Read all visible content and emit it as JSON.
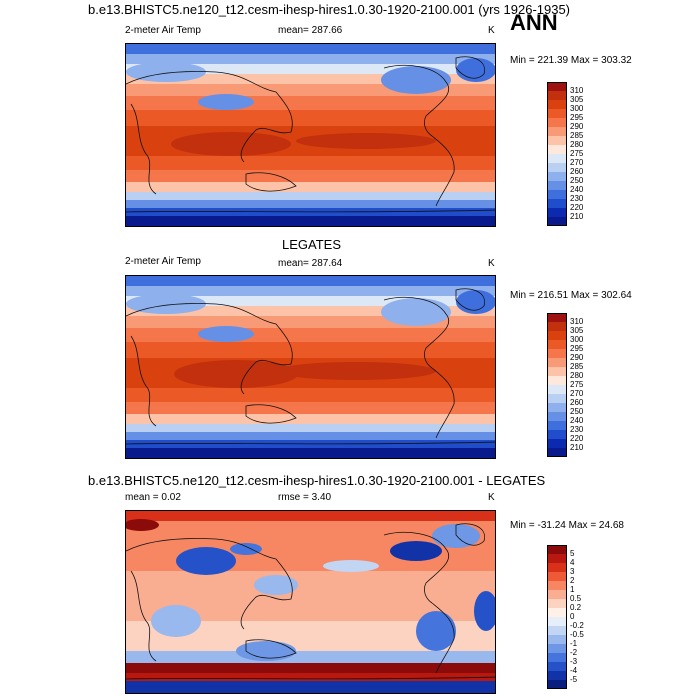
{
  "title": "b.e13.BHISTC5.ne120_t12.cesm-ihesp-hires1.0.30-1920-2100.001 (yrs 1926-1935)",
  "season": "ANN",
  "panels": [
    {
      "id": "model",
      "heading": "",
      "left_label": "2-meter Air Temp",
      "center_label": "mean= 287.66",
      "right_label": "K",
      "minmax": "Min = 221.39 Max = 303.32",
      "colorbar": {
        "levels": [
          "310",
          "305",
          "300",
          "295",
          "290",
          "285",
          "280",
          "275",
          "270",
          "260",
          "250",
          "240",
          "230",
          "220",
          "210"
        ],
        "colors": [
          "#9e1111",
          "#c2300e",
          "#d9420e",
          "#eb5a26",
          "#f5764a",
          "#f99a76",
          "#fcc3a8",
          "#fee8dc",
          "#dde8f7",
          "#b9d0f2",
          "#8eb0ed",
          "#6690e6",
          "#3f6fdd",
          "#1f4dcc",
          "#0c2ab0",
          "#081a8c"
        ]
      }
    },
    {
      "id": "obs",
      "heading": "LEGATES",
      "left_label": "2-meter Air Temp",
      "center_label": "mean= 287.64",
      "right_label": "K",
      "minmax": "Min = 216.51 Max = 302.64",
      "colorbar": {
        "levels": [
          "310",
          "305",
          "300",
          "295",
          "290",
          "285",
          "280",
          "275",
          "270",
          "260",
          "250",
          "240",
          "230",
          "220",
          "210"
        ],
        "colors": [
          "#9e1111",
          "#c2300e",
          "#d9420e",
          "#eb5a26",
          "#f5764a",
          "#f99a76",
          "#fcc3a8",
          "#fee8dc",
          "#dde8f7",
          "#b9d0f2",
          "#8eb0ed",
          "#6690e6",
          "#3f6fdd",
          "#1f4dcc",
          "#0c2ab0",
          "#081a8c"
        ]
      }
    },
    {
      "id": "diff",
      "heading": "b.e13.BHISTC5.ne120_t12.cesm-ihesp-hires1.0.30-1920-2100.001 - LEGATES",
      "left_label": "mean =   0.02",
      "center_label": "rmse =    3.40",
      "right_label": "K",
      "minmax": "Min = -31.24 Max =  24.68",
      "colorbar": {
        "levels": [
          "5",
          "4",
          "3",
          "2",
          "1",
          "0.5",
          "0.2",
          "0",
          "-0.2",
          "-0.5",
          "-1",
          "-2",
          "-3",
          "-4",
          "-5"
        ],
        "colors": [
          "#8b0a0a",
          "#b8180f",
          "#d9301a",
          "#ee5a35",
          "#f68762",
          "#f9ad91",
          "#fcd2c0",
          "#fff0e8",
          "#e6eef9",
          "#c2d5f3",
          "#98b8ee",
          "#6e97e6",
          "#4575dc",
          "#2652c9",
          "#1233a8",
          "#0a1e80"
        ]
      }
    }
  ]
}
